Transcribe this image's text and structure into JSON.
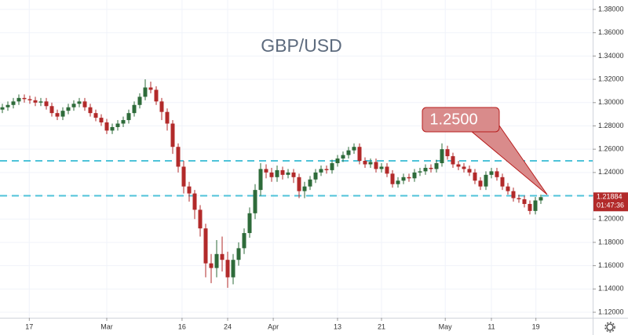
{
  "chart_data": {
    "type": "candlestick",
    "title": "GBP/USD",
    "up_color": "#2e6b3a",
    "down_color": "#b22a2a",
    "level_color": "#4fc3d9",
    "xlim": [
      -0.43,
      107.43
    ],
    "ylim": [
      1.1153,
      1.3881
    ],
    "yticks": [
      {
        "value": 1.12,
        "label": "1.12000"
      },
      {
        "value": 1.14,
        "label": "1.14000"
      },
      {
        "value": 1.16,
        "label": "1.16000"
      },
      {
        "value": 1.18,
        "label": "1.18000"
      },
      {
        "value": 1.2,
        "label": "1.20000"
      },
      {
        "value": 1.22,
        "label": "1.22000"
      },
      {
        "value": 1.24,
        "label": "1.24000"
      },
      {
        "value": 1.26,
        "label": "1.26000"
      },
      {
        "value": 1.28,
        "label": "1.28000"
      },
      {
        "value": 1.3,
        "label": "1.30000"
      },
      {
        "value": 1.32,
        "label": "1.32000"
      },
      {
        "value": 1.34,
        "label": "1.34000"
      },
      {
        "value": 1.36,
        "label": "1.36000"
      },
      {
        "value": 1.38,
        "label": "1.38000"
      }
    ],
    "xticks": [
      {
        "value": 4.9,
        "label": "17"
      },
      {
        "value": 19,
        "label": "Mar"
      },
      {
        "value": 32.7,
        "label": "16"
      },
      {
        "value": 41,
        "label": "24"
      },
      {
        "value": 49.3,
        "label": "Apr"
      },
      {
        "value": 61,
        "label": "13"
      },
      {
        "value": 69,
        "label": "21"
      },
      {
        "value": 80.6,
        "label": "May"
      },
      {
        "value": 89,
        "label": "11"
      },
      {
        "value": 97.1,
        "label": "19"
      }
    ],
    "grid": true,
    "levels": [
      1.25,
      1.22
    ],
    "annotation": "1.2500",
    "last_price_label": "1.21884",
    "countdown": "01:47:36",
    "candles": [
      [
        1.294,
        1.299,
        1.291,
        1.296
      ],
      [
        1.296,
        1.301,
        1.293,
        1.298
      ],
      [
        1.298,
        1.304,
        1.295,
        1.301
      ],
      [
        1.301,
        1.307,
        1.298,
        1.304
      ],
      [
        1.304,
        1.307,
        1.3,
        1.303
      ],
      [
        1.303,
        1.306,
        1.299,
        1.302
      ],
      [
        1.302,
        1.305,
        1.297,
        1.3
      ],
      [
        1.3,
        1.304,
        1.297,
        1.301
      ],
      [
        1.301,
        1.304,
        1.294,
        1.297
      ],
      [
        1.297,
        1.3,
        1.288,
        1.291
      ],
      [
        1.291,
        1.294,
        1.285,
        1.288
      ],
      [
        1.288,
        1.296,
        1.285,
        1.293
      ],
      [
        1.293,
        1.299,
        1.29,
        1.296
      ],
      [
        1.296,
        1.302,
        1.293,
        1.299
      ],
      [
        1.299,
        1.304,
        1.296,
        1.301
      ],
      [
        1.301,
        1.304,
        1.293,
        1.296
      ],
      [
        1.296,
        1.299,
        1.288,
        1.291
      ],
      [
        1.291,
        1.294,
        1.284,
        1.287
      ],
      [
        1.287,
        1.29,
        1.28,
        1.283
      ],
      [
        1.283,
        1.286,
        1.273,
        1.276
      ],
      [
        1.276,
        1.282,
        1.273,
        1.279
      ],
      [
        1.279,
        1.285,
        1.276,
        1.282
      ],
      [
        1.282,
        1.288,
        1.279,
        1.285
      ],
      [
        1.285,
        1.294,
        1.282,
        1.291
      ],
      [
        1.291,
        1.301,
        1.288,
        1.298
      ],
      [
        1.298,
        1.308,
        1.295,
        1.305
      ],
      [
        1.305,
        1.32,
        1.302,
        1.313
      ],
      [
        1.313,
        1.318,
        1.308,
        1.311
      ],
      [
        1.311,
        1.314,
        1.298,
        1.301
      ],
      [
        1.301,
        1.304,
        1.285,
        1.292
      ],
      [
        1.292,
        1.295,
        1.276,
        1.282
      ],
      [
        1.282,
        1.285,
        1.256,
        1.262
      ],
      [
        1.262,
        1.265,
        1.24,
        1.245
      ],
      [
        1.245,
        1.25,
        1.222,
        1.228
      ],
      [
        1.228,
        1.232,
        1.215,
        1.222
      ],
      [
        1.222,
        1.225,
        1.2,
        1.208
      ],
      [
        1.208,
        1.212,
        1.185,
        1.192
      ],
      [
        1.192,
        1.196,
        1.15,
        1.162
      ],
      [
        1.162,
        1.17,
        1.145,
        1.158
      ],
      [
        1.158,
        1.182,
        1.15,
        1.17
      ],
      [
        1.17,
        1.185,
        1.155,
        1.165
      ],
      [
        1.165,
        1.172,
        1.141,
        1.15
      ],
      [
        1.15,
        1.17,
        1.144,
        1.165
      ],
      [
        1.165,
        1.18,
        1.16,
        1.175
      ],
      [
        1.175,
        1.192,
        1.17,
        1.188
      ],
      [
        1.188,
        1.21,
        1.184,
        1.205
      ],
      [
        1.205,
        1.23,
        1.2,
        1.225
      ],
      [
        1.225,
        1.248,
        1.22,
        1.243
      ],
      [
        1.243,
        1.247,
        1.235,
        1.24
      ],
      [
        1.24,
        1.244,
        1.232,
        1.236
      ],
      [
        1.236,
        1.246,
        1.232,
        1.242
      ],
      [
        1.242,
        1.245,
        1.234,
        1.238
      ],
      [
        1.238,
        1.243,
        1.235,
        1.24
      ],
      [
        1.24,
        1.243,
        1.231,
        1.236
      ],
      [
        1.236,
        1.239,
        1.218,
        1.224
      ],
      [
        1.224,
        1.232,
        1.218,
        1.228
      ],
      [
        1.228,
        1.237,
        1.225,
        1.234
      ],
      [
        1.234,
        1.243,
        1.231,
        1.24
      ],
      [
        1.24,
        1.246,
        1.237,
        1.243
      ],
      [
        1.243,
        1.246,
        1.239,
        1.242
      ],
      [
        1.242,
        1.251,
        1.239,
        1.248
      ],
      [
        1.248,
        1.255,
        1.245,
        1.252
      ],
      [
        1.252,
        1.258,
        1.249,
        1.255
      ],
      [
        1.255,
        1.262,
        1.252,
        1.259
      ],
      [
        1.259,
        1.265,
        1.256,
        1.262
      ],
      [
        1.262,
        1.265,
        1.247,
        1.25
      ],
      [
        1.25,
        1.253,
        1.244,
        1.247
      ],
      [
        1.247,
        1.252,
        1.244,
        1.249
      ],
      [
        1.249,
        1.252,
        1.24,
        1.243
      ],
      [
        1.243,
        1.248,
        1.24,
        1.245
      ],
      [
        1.245,
        1.248,
        1.236,
        1.239
      ],
      [
        1.239,
        1.242,
        1.227,
        1.23
      ],
      [
        1.23,
        1.236,
        1.227,
        1.233
      ],
      [
        1.233,
        1.239,
        1.23,
        1.236
      ],
      [
        1.236,
        1.239,
        1.232,
        1.235
      ],
      [
        1.235,
        1.243,
        1.232,
        1.24
      ],
      [
        1.24,
        1.244,
        1.237,
        1.241
      ],
      [
        1.241,
        1.247,
        1.238,
        1.244
      ],
      [
        1.244,
        1.247,
        1.24,
        1.243
      ],
      [
        1.243,
        1.251,
        1.24,
        1.248
      ],
      [
        1.248,
        1.265,
        1.245,
        1.26
      ],
      [
        1.26,
        1.263,
        1.251,
        1.254
      ],
      [
        1.254,
        1.257,
        1.244,
        1.247
      ],
      [
        1.247,
        1.25,
        1.242,
        1.245
      ],
      [
        1.245,
        1.248,
        1.24,
        1.243
      ],
      [
        1.243,
        1.246,
        1.237,
        1.24
      ],
      [
        1.24,
        1.243,
        1.23,
        1.233
      ],
      [
        1.233,
        1.236,
        1.225,
        1.228
      ],
      [
        1.228,
        1.241,
        1.225,
        1.238
      ],
      [
        1.238,
        1.244,
        1.235,
        1.241
      ],
      [
        1.241,
        1.244,
        1.233,
        1.236
      ],
      [
        1.236,
        1.239,
        1.225,
        1.228
      ],
      [
        1.228,
        1.231,
        1.221,
        1.224
      ],
      [
        1.224,
        1.227,
        1.215,
        1.218
      ],
      [
        1.218,
        1.221,
        1.214,
        1.217
      ],
      [
        1.217,
        1.22,
        1.21,
        1.213
      ],
      [
        1.213,
        1.216,
        1.204,
        1.207
      ],
      [
        1.207,
        1.219,
        1.204,
        1.216
      ],
      [
        1.216,
        1.221,
        1.213,
        1.21884
      ]
    ]
  }
}
